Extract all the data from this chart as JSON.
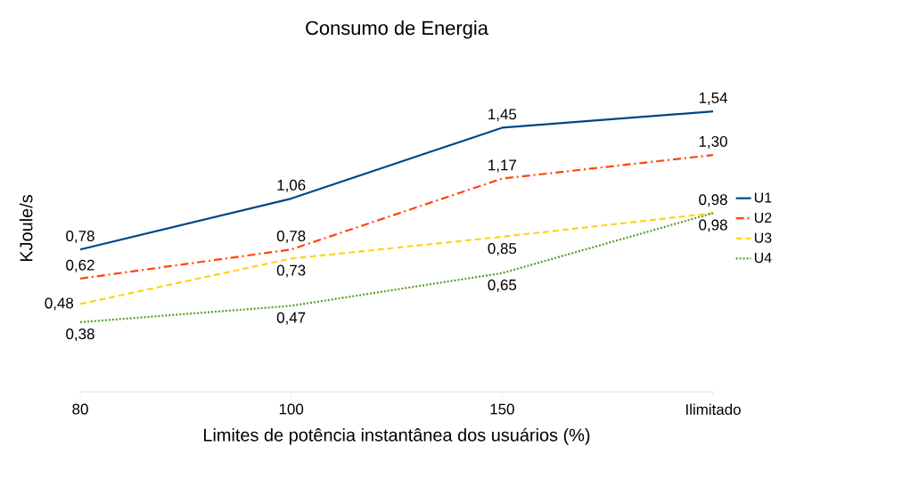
{
  "chart_data": {
    "type": "line",
    "title": "Consumo de Energia",
    "xlabel": "Limites de potência instantânea dos usuários (%)",
    "ylabel": "KJoule/s",
    "categories": [
      "80",
      "100",
      "150",
      "Ilimitado"
    ],
    "series": [
      {
        "name": "U1",
        "color": "#004586",
        "line_style": "solid",
        "values": [
          0.78,
          1.06,
          1.45,
          1.54
        ],
        "value_labels": [
          "0,78",
          "1,06",
          "1,45",
          "1,54"
        ]
      },
      {
        "name": "U2",
        "color": "#ff420e",
        "line_style": "dashdot",
        "values": [
          0.62,
          0.78,
          1.17,
          1.3
        ],
        "value_labels": [
          "0,62",
          "0,78",
          "1,17",
          "1,30"
        ]
      },
      {
        "name": "U3",
        "color": "#ffd320",
        "line_style": "dashed",
        "values": [
          0.48,
          0.73,
          0.85,
          0.98
        ],
        "value_labels": [
          "0,48",
          "0,73",
          "0,85",
          "0,98"
        ]
      },
      {
        "name": "U4",
        "color": "#579d1c",
        "line_style": "dotted",
        "values": [
          0.38,
          0.47,
          0.65,
          0.98
        ],
        "value_labels": [
          "0,38",
          "0,47",
          "0,65",
          "0,98"
        ]
      }
    ],
    "tick_labels": "x",
    "legend": "right"
  }
}
